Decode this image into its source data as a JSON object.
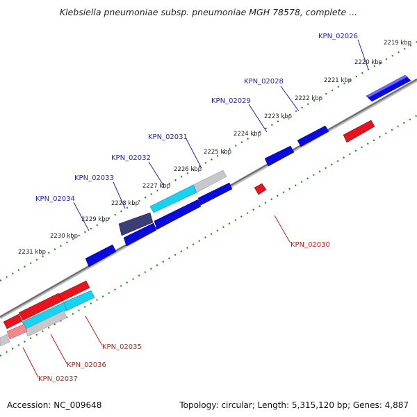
{
  "title": "Klebsiella pneumoniae subsp. pneumoniae MGH 78578, complete ...",
  "footer": {
    "accession": "Accession: NC_009648",
    "summary": "Topology: circular; Length: 5,315,120 bp; Genes: 4,887"
  },
  "colors": {
    "forward_gene": "#0a0adc",
    "reverse_gene": "#e6141e",
    "cyan_gene": "#19d2f0",
    "gray_gene": "#c8c8cc",
    "dark_gene": "#3c3c78",
    "label_forward": "#2020c8",
    "label_reverse": "#d01818",
    "backbone": "#707070",
    "tick": "#1a8c1a",
    "position_text": "#222222"
  },
  "position_labels": [
    "2219 kbp",
    "2220 kbp",
    "2221 kbp",
    "2222 kbp",
    "2223 kbp",
    "2224 kbp",
    "2225 kbp",
    "2226 kbp",
    "2227 kbp",
    "2228 kbp",
    "2229 kbp",
    "2230 kbp",
    "2231 kbp"
  ],
  "gene_labels": {
    "forward": [
      "KPN_02026",
      "KPN_02028",
      "KPN_02029",
      "KPN_02031",
      "KPN_02032",
      "KPN_02033",
      "KPN_02034"
    ],
    "reverse": [
      "KPN_02030",
      "KPN_02035",
      "KPN_02036",
      "KPN_02037"
    ]
  }
}
